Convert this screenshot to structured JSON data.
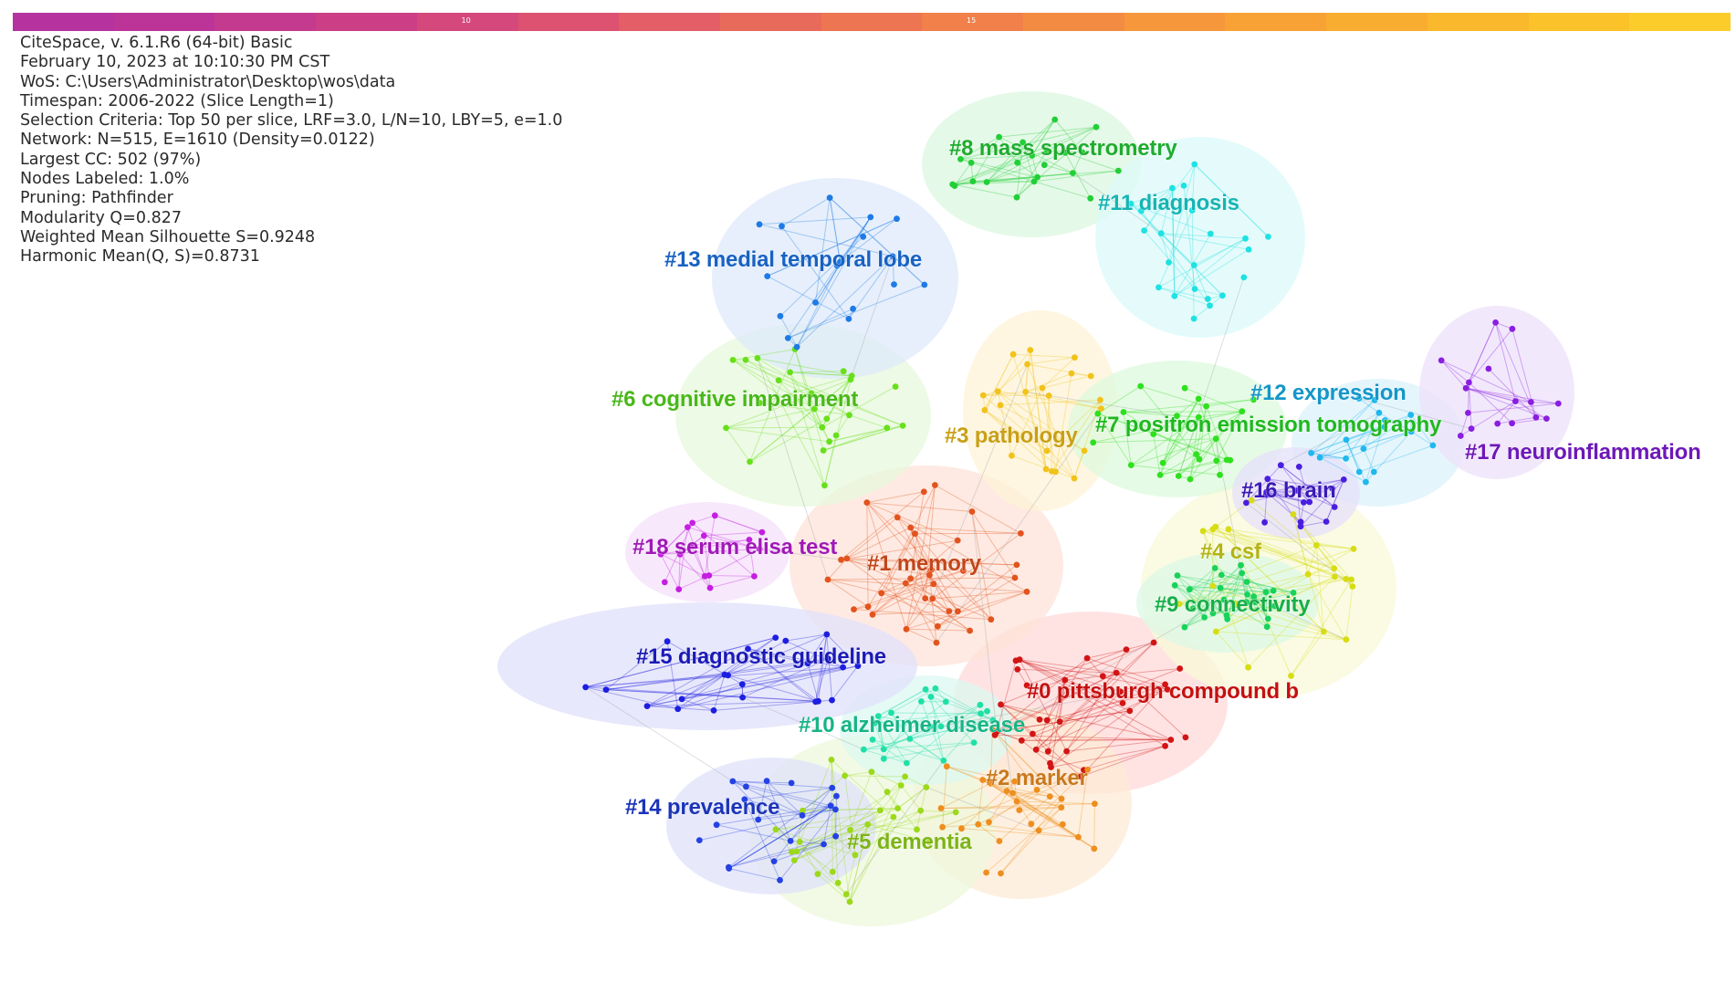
{
  "app": {
    "info_lines": [
      "CiteSpace, v. 6.1.R6 (64-bit) Basic",
      "February 10, 2023 at 10:10:30 PM CST",
      "WoS: C:\\Users\\Administrator\\Desktop\\wos\\data",
      "Timespan: 2006-2022 (Slice Length=1)",
      "Selection Criteria: Top 50 per slice, LRF=3.0, L/N=10, LBY=5, e=1.0",
      "Network: N=515, E=1610 (Density=0.0122)",
      "Largest CC: 502 (97%)",
      "Nodes Labeled: 1.0%",
      "Pruning: Pathfinder",
      "Modularity Q=0.827",
      "Weighted Mean Silhouette S=0.9248",
      "Harmonic Mean(Q, S)=0.8731"
    ]
  },
  "timeline": {
    "colors": [
      "#b6329f",
      "#bd3499",
      "#c43a8f",
      "#cc3f86",
      "#d4487b",
      "#dc5270",
      "#e35e66",
      "#e86a5b",
      "#ed7552",
      "#f1804a",
      "#f48b42",
      "#f6973c",
      "#f8a236",
      "#f9ad30",
      "#fab82c",
      "#fbc22a",
      "#fccd2a"
    ],
    "tick_labels": [
      {
        "index": 4,
        "label": "10"
      },
      {
        "index": 9,
        "label": "15"
      }
    ]
  },
  "chart_data": {
    "type": "network",
    "clusters": [
      {
        "id": 0,
        "label": "#0 pittsburgh compound b",
        "color": "#d21414",
        "hull": "#ffd9d9",
        "nodes": 34
      },
      {
        "id": 1,
        "label": "#1 memory",
        "color": "#e2531e",
        "hull": "#fde3d8",
        "nodes": 34
      },
      {
        "id": 2,
        "label": "#2 marker",
        "color": "#ee8e1e",
        "hull": "#fdebd6",
        "nodes": 28
      },
      {
        "id": 3,
        "label": "#3 pathology",
        "color": "#f1c21a",
        "hull": "#fdf3d6",
        "nodes": 22
      },
      {
        "id": 4,
        "label": "#4 csf",
        "color": "#d7dc14",
        "hull": "#f8fad8",
        "nodes": 22
      },
      {
        "id": 5,
        "label": "#5 dementia",
        "color": "#9bd91a",
        "hull": "#eef8dc",
        "nodes": 28
      },
      {
        "id": 6,
        "label": "#6 cognitive impairment",
        "color": "#67e01a",
        "hull": "#e7f8dc",
        "nodes": 24
      },
      {
        "id": 7,
        "label": "#7 positron emission tomography",
        "color": "#2fe01e",
        "hull": "#def9de",
        "nodes": 24
      },
      {
        "id": 8,
        "label": "#8 mass spectrometry",
        "color": "#22cf36",
        "hull": "#dcf7e0",
        "nodes": 22
      },
      {
        "id": 9,
        "label": "#9 connectivity",
        "color": "#19d25a",
        "hull": "#dcf8e6",
        "nodes": 26
      },
      {
        "id": 10,
        "label": "#10 alzheimer disease",
        "color": "#1ee0a7",
        "hull": "#dcf8f0",
        "nodes": 22
      },
      {
        "id": 11,
        "label": "#11 diagnosis",
        "color": "#1ee2e2",
        "hull": "#dcf9f9",
        "nodes": 22
      },
      {
        "id": 12,
        "label": "#12 expression",
        "color": "#1eb8ee",
        "hull": "#dcf2fb",
        "nodes": 16
      },
      {
        "id": 13,
        "label": "#13 medial temporal lobe",
        "color": "#1e7ae6",
        "hull": "#dde9fa",
        "nodes": 18
      },
      {
        "id": 14,
        "label": "#14 prevalence",
        "color": "#2442e2",
        "hull": "#dfe2fa",
        "nodes": 20
      },
      {
        "id": 15,
        "label": "#15 diagnostic guideline",
        "color": "#1c1ee0",
        "hull": "#e0e0fb",
        "nodes": 22
      },
      {
        "id": 16,
        "label": "#16 brain",
        "color": "#4a1ee0",
        "hull": "#e6e0fb",
        "nodes": 16
      },
      {
        "id": 17,
        "label": "#17 neuroinflammation",
        "color": "#8a1ee0",
        "hull": "#eee0fb",
        "nodes": 16
      },
      {
        "id": 18,
        "label": "#18 serum elisa test",
        "color": "#c41ee0",
        "hull": "#f5e0fb",
        "nodes": 16
      }
    ]
  }
}
